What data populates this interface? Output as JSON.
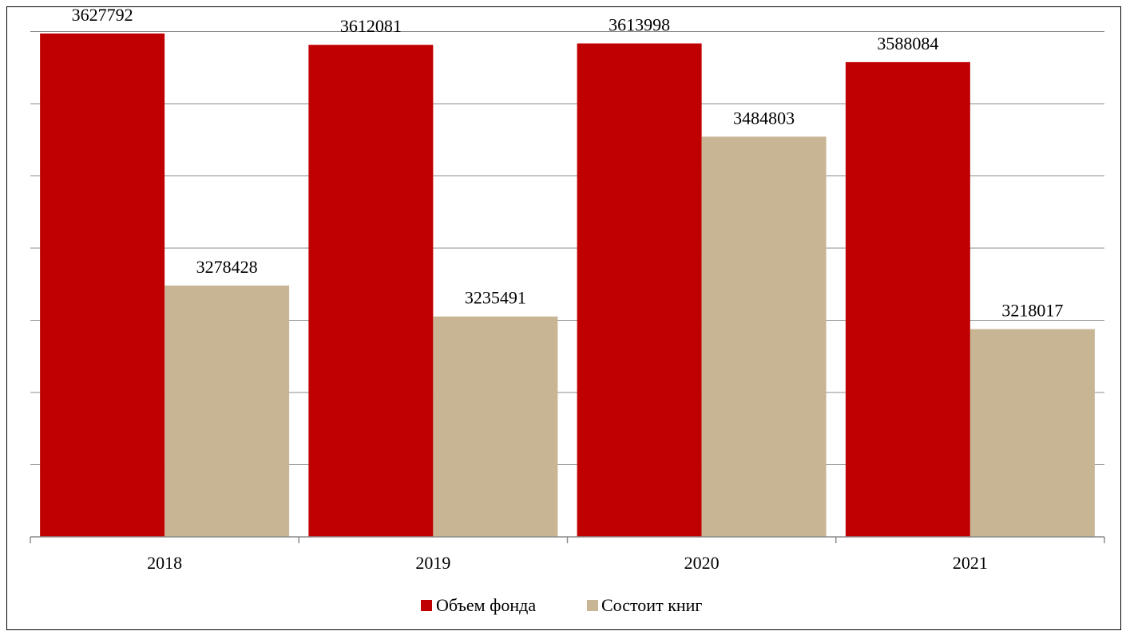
{
  "chart_data": {
    "type": "bar",
    "categories": [
      "2018",
      "2019",
      "2020",
      "2021"
    ],
    "series": [
      {
        "name": "Объем фонда",
        "color": "#c00000",
        "values": [
          3627792,
          3612081,
          3613998,
          3588084
        ]
      },
      {
        "name": "Состоит книг",
        "color": "#c8b594",
        "values": [
          3278428,
          3235491,
          3484803,
          3218017
        ]
      }
    ],
    "ylim": [
      2930000,
      3630000
    ],
    "grid": true,
    "legend": "bottom",
    "show_data_labels": true
  }
}
